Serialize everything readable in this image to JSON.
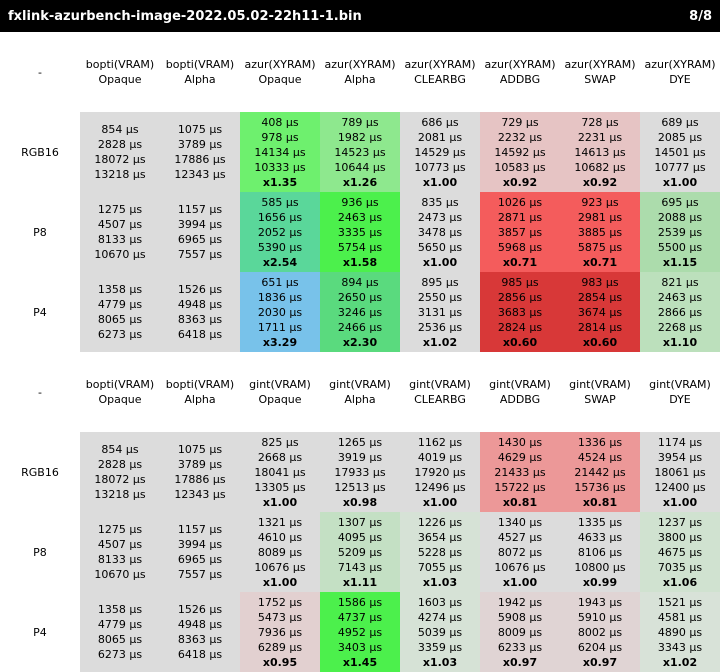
{
  "title": {
    "left": "fxlink-azurbench-image-2022.05.02-22h11-1.bin",
    "right": "8/8"
  },
  "tables": [
    {
      "corner": "-",
      "columns": [
        {
          "l1": "bopti(VRAM)",
          "l2": "Opaque"
        },
        {
          "l1": "bopti(VRAM)",
          "l2": "Alpha"
        },
        {
          "l1": "azur(XYRAM)",
          "l2": "Opaque"
        },
        {
          "l1": "azur(XYRAM)",
          "l2": "Alpha"
        },
        {
          "l1": "azur(XYRAM)",
          "l2": "CLEARBG"
        },
        {
          "l1": "azur(XYRAM)",
          "l2": "ADDBG"
        },
        {
          "l1": "azur(XYRAM)",
          "l2": "SWAP"
        },
        {
          "l1": "azur(XYRAM)",
          "l2": "DYE"
        }
      ],
      "rows": [
        {
          "label": "RGB16",
          "cells": [
            {
              "values": [
                "854 µs",
                "2828 µs",
                "18072 µs",
                "13218 µs"
              ],
              "ratio": "",
              "bg": "#dcdcdc"
            },
            {
              "values": [
                "1075 µs",
                "3789 µs",
                "17886 µs",
                "12343 µs"
              ],
              "ratio": "",
              "bg": "#dcdcdc"
            },
            {
              "values": [
                "408 µs",
                "978 µs",
                "14134 µs",
                "10333 µs"
              ],
              "ratio": "x1.35",
              "bg": "#6ef06e"
            },
            {
              "values": [
                "789 µs",
                "1982 µs",
                "14523 µs",
                "10644 µs"
              ],
              "ratio": "x1.26",
              "bg": "#8ee88e"
            },
            {
              "values": [
                "686 µs",
                "2081 µs",
                "14529 µs",
                "10773 µs"
              ],
              "ratio": "x1.00",
              "bg": "#dcdcdc"
            },
            {
              "values": [
                "729 µs",
                "2232 µs",
                "14592 µs",
                "10583 µs"
              ],
              "ratio": "x0.92",
              "bg": "#e6c4c4"
            },
            {
              "values": [
                "728 µs",
                "2231 µs",
                "14613 µs",
                "10682 µs"
              ],
              "ratio": "x0.92",
              "bg": "#e6c4c4"
            },
            {
              "values": [
                "689 µs",
                "2085 µs",
                "14501 µs",
                "10777 µs"
              ],
              "ratio": "x1.00",
              "bg": "#dcdcdc"
            }
          ]
        },
        {
          "label": "P8",
          "cells": [
            {
              "values": [
                "1275 µs",
                "4507 µs",
                "8133 µs",
                "10670 µs"
              ],
              "ratio": "",
              "bg": "#dcdcdc"
            },
            {
              "values": [
                "1157 µs",
                "3994 µs",
                "6965 µs",
                "7557 µs"
              ],
              "ratio": "",
              "bg": "#dcdcdc"
            },
            {
              "values": [
                "585 µs",
                "1656 µs",
                "2052 µs",
                "5390 µs"
              ],
              "ratio": "x2.54",
              "bg": "#5ad79a"
            },
            {
              "values": [
                "936 µs",
                "2463 µs",
                "3335 µs",
                "5754 µs"
              ],
              "ratio": "x1.58",
              "bg": "#4cf04c"
            },
            {
              "values": [
                "835 µs",
                "2473 µs",
                "3478 µs",
                "5650 µs"
              ],
              "ratio": "x1.00",
              "bg": "#dcdcdc"
            },
            {
              "values": [
                "1026 µs",
                "2871 µs",
                "3857 µs",
                "5968 µs"
              ],
              "ratio": "x0.71",
              "bg": "#f45c5c"
            },
            {
              "values": [
                "923 µs",
                "2981 µs",
                "3885 µs",
                "5875 µs"
              ],
              "ratio": "x0.71",
              "bg": "#f45c5c"
            },
            {
              "values": [
                "695 µs",
                "2088 µs",
                "2539 µs",
                "5500 µs"
              ],
              "ratio": "x1.15",
              "bg": "#acdcac"
            }
          ]
        },
        {
          "label": "P4",
          "cells": [
            {
              "values": [
                "1358 µs",
                "4779 µs",
                "8065 µs",
                "6273 µs"
              ],
              "ratio": "",
              "bg": "#dcdcdc"
            },
            {
              "values": [
                "1526 µs",
                "4948 µs",
                "8363 µs",
                "6418 µs"
              ],
              "ratio": "",
              "bg": "#dcdcdc"
            },
            {
              "values": [
                "651 µs",
                "1836 µs",
                "2030 µs",
                "1711 µs"
              ],
              "ratio": "x3.29",
              "bg": "#78c2ea"
            },
            {
              "values": [
                "894 µs",
                "2650 µs",
                "3246 µs",
                "2466 µs"
              ],
              "ratio": "x2.30",
              "bg": "#5ada7e"
            },
            {
              "values": [
                "895 µs",
                "2550 µs",
                "3131 µs",
                "2536 µs"
              ],
              "ratio": "x1.02",
              "bg": "#dcdcdc"
            },
            {
              "values": [
                "985 µs",
                "2856 µs",
                "3683 µs",
                "2824 µs"
              ],
              "ratio": "x0.60",
              "bg": "#d83838"
            },
            {
              "values": [
                "983 µs",
                "2854 µs",
                "3674 µs",
                "2814 µs"
              ],
              "ratio": "x0.60",
              "bg": "#d83838"
            },
            {
              "values": [
                "821 µs",
                "2463 µs",
                "2866 µs",
                "2268 µs"
              ],
              "ratio": "x1.10",
              "bg": "#bce0bc"
            }
          ]
        }
      ]
    },
    {
      "corner": "-",
      "columns": [
        {
          "l1": "bopti(VRAM)",
          "l2": "Opaque"
        },
        {
          "l1": "bopti(VRAM)",
          "l2": "Alpha"
        },
        {
          "l1": "gint(VRAM)",
          "l2": "Opaque"
        },
        {
          "l1": "gint(VRAM)",
          "l2": "Alpha"
        },
        {
          "l1": "gint(VRAM)",
          "l2": "CLEARBG"
        },
        {
          "l1": "gint(VRAM)",
          "l2": "ADDBG"
        },
        {
          "l1": "gint(VRAM)",
          "l2": "SWAP"
        },
        {
          "l1": "gint(VRAM)",
          "l2": "DYE"
        }
      ],
      "rows": [
        {
          "label": "RGB16",
          "cells": [
            {
              "values": [
                "854 µs",
                "2828 µs",
                "18072 µs",
                "13218 µs"
              ],
              "ratio": "",
              "bg": "#dcdcdc"
            },
            {
              "values": [
                "1075 µs",
                "3789 µs",
                "17886 µs",
                "12343 µs"
              ],
              "ratio": "",
              "bg": "#dcdcdc"
            },
            {
              "values": [
                "825 µs",
                "2668 µs",
                "18041 µs",
                "13305 µs"
              ],
              "ratio": "x1.00",
              "bg": "#dcdcdc"
            },
            {
              "values": [
                "1265 µs",
                "3919 µs",
                "17933 µs",
                "12513 µs"
              ],
              "ratio": "x0.98",
              "bg": "#dcdcdc"
            },
            {
              "values": [
                "1162 µs",
                "4019 µs",
                "17920 µs",
                "12496 µs"
              ],
              "ratio": "x1.00",
              "bg": "#dcdcdc"
            },
            {
              "values": [
                "1430 µs",
                "4629 µs",
                "21433 µs",
                "15722 µs"
              ],
              "ratio": "x0.81",
              "bg": "#ec9898"
            },
            {
              "values": [
                "1336 µs",
                "4524 µs",
                "21442 µs",
                "15736 µs"
              ],
              "ratio": "x0.81",
              "bg": "#ec9898"
            },
            {
              "values": [
                "1174 µs",
                "3954 µs",
                "18061 µs",
                "12400 µs"
              ],
              "ratio": "x1.00",
              "bg": "#dcdcdc"
            }
          ]
        },
        {
          "label": "P8",
          "cells": [
            {
              "values": [
                "1275 µs",
                "4507 µs",
                "8133 µs",
                "10670 µs"
              ],
              "ratio": "",
              "bg": "#dcdcdc"
            },
            {
              "values": [
                "1157 µs",
                "3994 µs",
                "6965 µs",
                "7557 µs"
              ],
              "ratio": "",
              "bg": "#dcdcdc"
            },
            {
              "values": [
                "1321 µs",
                "4610 µs",
                "8089 µs",
                "10676 µs"
              ],
              "ratio": "x1.00",
              "bg": "#dcdcdc"
            },
            {
              "values": [
                "1307 µs",
                "4095 µs",
                "5209 µs",
                "7143 µs"
              ],
              "ratio": "x1.11",
              "bg": "#c4e0c4"
            },
            {
              "values": [
                "1226 µs",
                "3654 µs",
                "5228 µs",
                "7055 µs"
              ],
              "ratio": "x1.03",
              "bg": "#d6e2d6"
            },
            {
              "values": [
                "1340 µs",
                "4527 µs",
                "8072 µs",
                "10676 µs"
              ],
              "ratio": "x1.00",
              "bg": "#dcdcdc"
            },
            {
              "values": [
                "1335 µs",
                "4633 µs",
                "8106 µs",
                "10800 µs"
              ],
              "ratio": "x0.99",
              "bg": "#dcdcdc"
            },
            {
              "values": [
                "1237 µs",
                "3800 µs",
                "4675 µs",
                "7035 µs"
              ],
              "ratio": "x1.06",
              "bg": "#d0e2d0"
            }
          ]
        },
        {
          "label": "P4",
          "cells": [
            {
              "values": [
                "1358 µs",
                "4779 µs",
                "8065 µs",
                "6273 µs"
              ],
              "ratio": "",
              "bg": "#dcdcdc"
            },
            {
              "values": [
                "1526 µs",
                "4948 µs",
                "8363 µs",
                "6418 µs"
              ],
              "ratio": "",
              "bg": "#dcdcdc"
            },
            {
              "values": [
                "1752 µs",
                "5473 µs",
                "7936 µs",
                "6289 µs"
              ],
              "ratio": "x0.95",
              "bg": "#e2d0d0"
            },
            {
              "values": [
                "1586 µs",
                "4737 µs",
                "4952 µs",
                "3403 µs"
              ],
              "ratio": "x1.45",
              "bg": "#4cf04c"
            },
            {
              "values": [
                "1603 µs",
                "4274 µs",
                "5039 µs",
                "3359 µs"
              ],
              "ratio": "x1.03",
              "bg": "#d6e2d6"
            },
            {
              "values": [
                "1942 µs",
                "5908 µs",
                "8009 µs",
                "6233 µs"
              ],
              "ratio": "x0.97",
              "bg": "#e0d4d4"
            },
            {
              "values": [
                "1943 µs",
                "5910 µs",
                "8002 µs",
                "6204 µs"
              ],
              "ratio": "x0.97",
              "bg": "#e0d4d4"
            },
            {
              "values": [
                "1521 µs",
                "4581 µs",
                "4890 µs",
                "3343 µs"
              ],
              "ratio": "x1.02",
              "bg": "#d8e2d8"
            }
          ]
        }
      ]
    }
  ]
}
